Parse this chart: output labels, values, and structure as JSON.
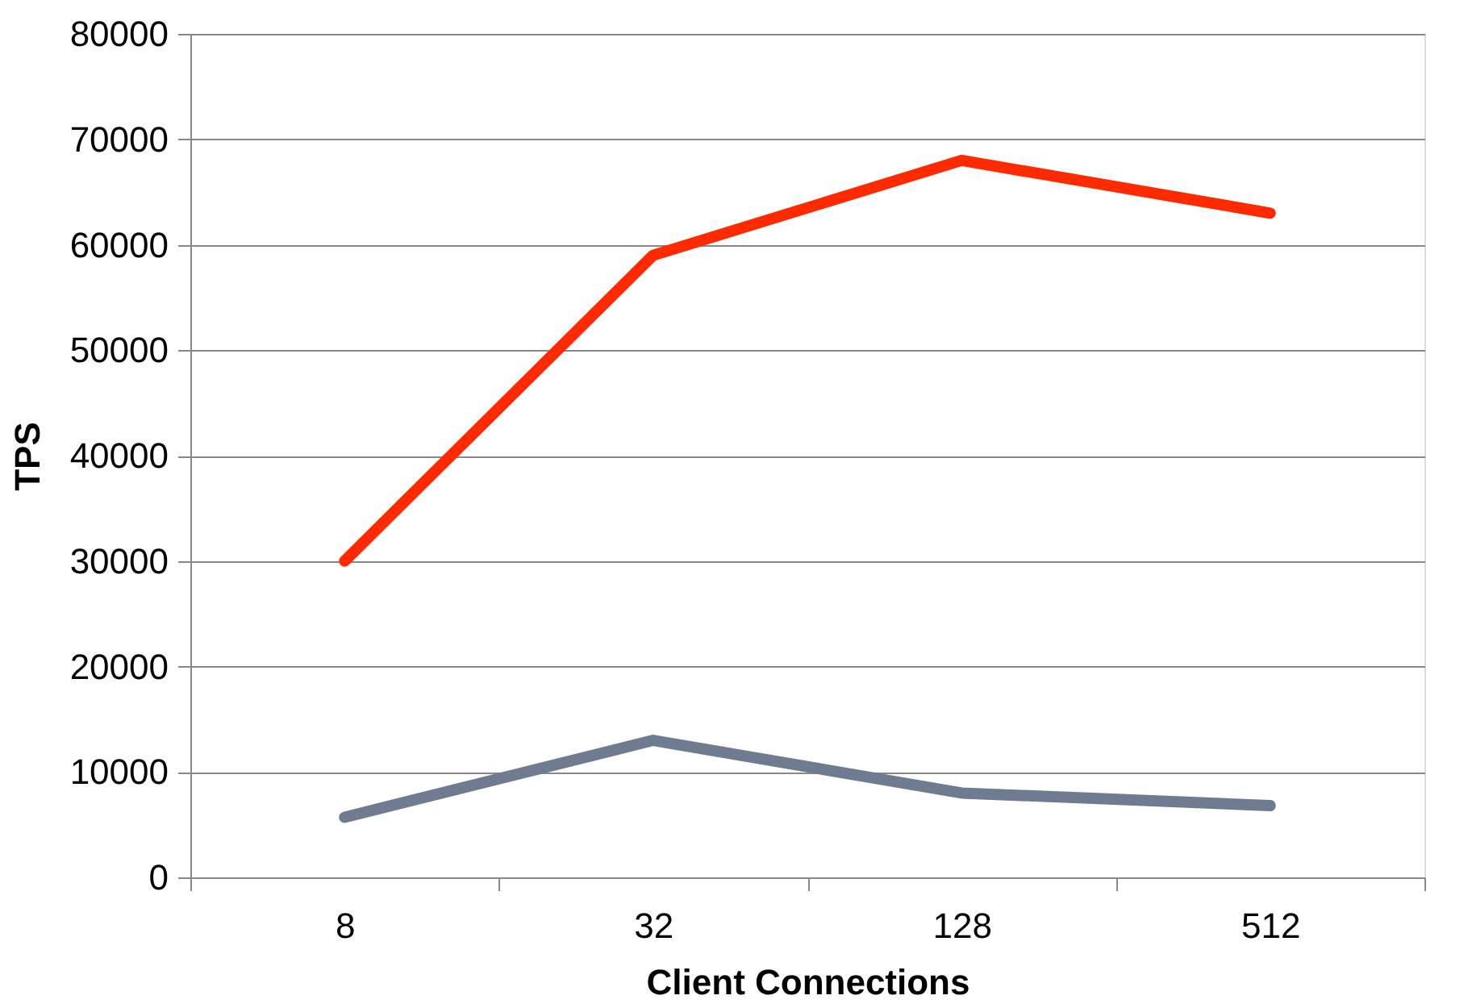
{
  "chart_data": {
    "type": "line",
    "xlabel": "Client Connections",
    "ylabel": "TPS",
    "categories": [
      "8",
      "32",
      "128",
      "512"
    ],
    "series": [
      {
        "color": "#ff2a00",
        "values": [
          30000,
          59000,
          68000,
          63000
        ]
      },
      {
        "color": "#6e7b91",
        "values": [
          5700,
          13000,
          8000,
          6800
        ]
      }
    ],
    "ylim": [
      0,
      80000
    ],
    "yticks": [
      0,
      10000,
      20000,
      30000,
      40000,
      50000,
      60000,
      70000,
      80000
    ],
    "grid": "y",
    "line_style": "solid"
  }
}
